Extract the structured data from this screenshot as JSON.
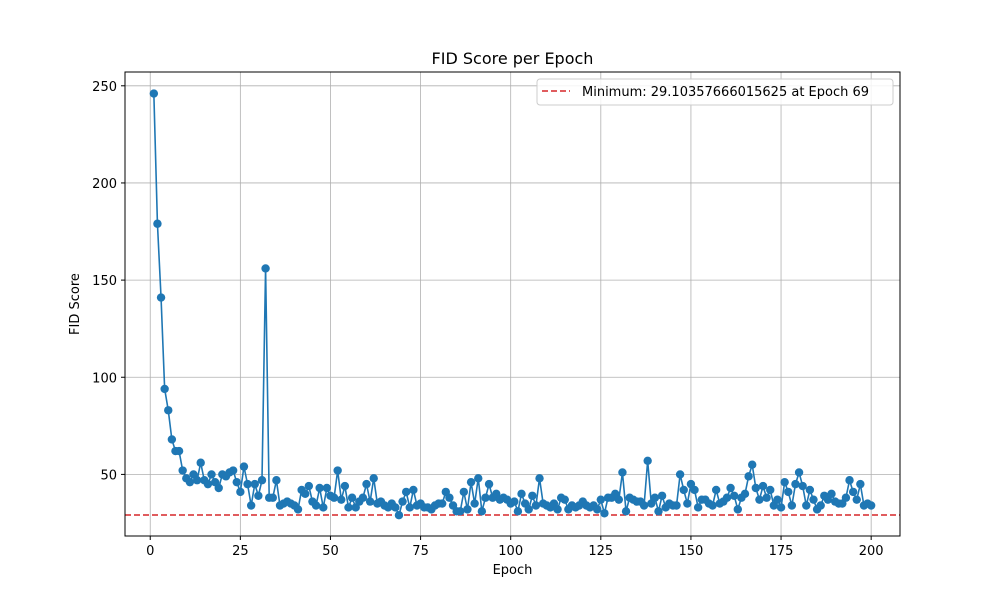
{
  "chart_data": {
    "type": "line",
    "title": "FID Score per Epoch",
    "xlabel": "Epoch",
    "ylabel": "FID Score",
    "xlim": [
      -7,
      208
    ],
    "ylim": [
      18.3,
      257.1
    ],
    "xticks": [
      0,
      25,
      50,
      75,
      100,
      125,
      150,
      175,
      200
    ],
    "yticks": [
      50,
      100,
      150,
      200,
      250
    ],
    "grid": true,
    "legend_position": "top-right",
    "colors": {
      "series": "#1f77b4",
      "reference": "#d62728",
      "grid": "#b0b0b0"
    },
    "series": [
      {
        "x": [
          1,
          2,
          3,
          4,
          5,
          6,
          7,
          8,
          9,
          10,
          11,
          12,
          13,
          14,
          15,
          16,
          17,
          18,
          19,
          20,
          21,
          22,
          23,
          24,
          25,
          26,
          27,
          28,
          29,
          30,
          31,
          32,
          33,
          34,
          35,
          36,
          37,
          38,
          39,
          40,
          41,
          42,
          43,
          44,
          45,
          46,
          47,
          48,
          49,
          50,
          51,
          52,
          53,
          54,
          55,
          56,
          57,
          58,
          59,
          60,
          61,
          62,
          63,
          64,
          65,
          66,
          67,
          68,
          69,
          70,
          71,
          72,
          73,
          74,
          75,
          76,
          77,
          78,
          79,
          80,
          81,
          82,
          83,
          84,
          85,
          86,
          87,
          88,
          89,
          90,
          91,
          92,
          93,
          94,
          95,
          96,
          97,
          98,
          99,
          100,
          101,
          102,
          103,
          104,
          105,
          106,
          107,
          108,
          109,
          110,
          111,
          112,
          113,
          114,
          115,
          116,
          117,
          118,
          119,
          120,
          121,
          122,
          123,
          124,
          125,
          126,
          127,
          128,
          129,
          130,
          131,
          132,
          133,
          134,
          135,
          136,
          137,
          138,
          139,
          140,
          141,
          142,
          143,
          144,
          145,
          146,
          147,
          148,
          149,
          150,
          151,
          152,
          153,
          154,
          155,
          156,
          157,
          158,
          159,
          160,
          161,
          162,
          163,
          164,
          165,
          166,
          167,
          168,
          169,
          170,
          171,
          172,
          173,
          174,
          175,
          176,
          177,
          178,
          179,
          180,
          181,
          182,
          183,
          184,
          185,
          186,
          187,
          188,
          189,
          190,
          191,
          192,
          193,
          194,
          195,
          196,
          197,
          198,
          199,
          200
        ],
        "values": [
          246,
          179,
          141,
          94,
          83,
          68,
          62,
          62,
          52,
          48,
          46,
          50,
          47,
          56,
          47,
          45,
          50,
          46,
          43,
          50,
          49,
          51,
          52,
          46,
          41,
          54,
          45,
          34,
          45,
          39,
          47,
          156,
          38,
          38,
          47,
          34,
          35,
          36,
          35,
          34,
          32,
          42,
          40,
          44,
          36,
          34,
          43,
          33,
          43,
          39,
          38,
          52,
          37,
          44,
          33,
          38,
          33,
          36,
          38,
          45,
          36,
          48,
          35,
          36,
          34,
          33,
          35,
          33,
          29,
          36,
          41,
          33,
          42,
          34,
          35,
          33,
          33,
          32,
          34,
          35,
          35,
          41,
          38,
          34,
          31,
          31,
          41,
          32,
          46,
          35,
          48,
          31,
          38,
          45,
          38,
          40,
          37,
          38,
          37,
          35,
          36,
          31,
          40,
          35,
          32,
          39,
          34,
          48,
          35,
          34,
          33,
          35,
          32,
          38,
          37,
          32,
          34,
          33,
          34,
          36,
          34,
          33,
          34,
          32,
          37,
          30,
          38,
          38,
          40,
          37,
          51,
          31,
          38,
          37,
          36,
          36,
          34,
          57,
          35,
          38,
          31,
          39,
          33,
          35,
          34,
          34,
          50,
          42,
          35,
          45,
          42,
          33,
          37,
          37,
          35,
          34,
          42,
          35,
          36,
          38,
          43,
          39,
          32,
          38,
          40,
          49,
          55,
          43,
          37,
          44,
          38,
          42,
          34,
          37,
          33,
          46,
          41,
          34,
          45,
          51,
          44,
          34,
          42,
          37,
          32,
          34,
          39,
          37,
          40,
          36,
          35,
          35,
          38,
          47,
          41,
          37,
          45,
          34,
          35,
          34
        ]
      }
    ],
    "reference_line": {
      "y": 29.10357666015625,
      "label": "Minimum: 29.10357666015625 at Epoch 69",
      "style": "dashed"
    }
  }
}
